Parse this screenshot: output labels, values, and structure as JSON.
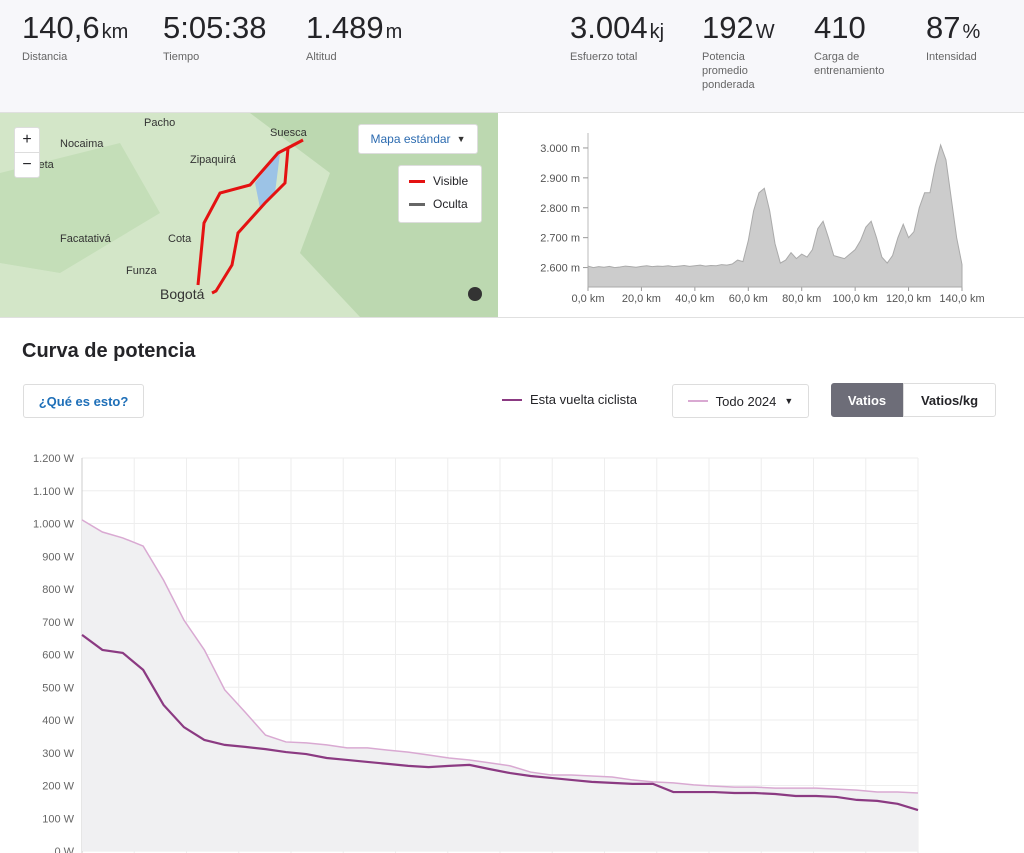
{
  "stats": [
    {
      "value": "140,6",
      "unit": "km",
      "label": "Distancia"
    },
    {
      "value": "5:05:38",
      "label": "Tiempo"
    },
    {
      "value": "1.489",
      "unit": "m",
      "label": "Altitud"
    },
    {
      "value": "3.004",
      "unit": "kj",
      "label": "Esfuerzo total"
    },
    {
      "value": "192",
      "unit": "W",
      "label": "Potencia promedio ponderada"
    },
    {
      "value": "410",
      "label": "Carga de entrenamiento"
    },
    {
      "value": "87",
      "unit": "%",
      "label": "Intensidad"
    }
  ],
  "map": {
    "places": [
      "Pacho",
      "Nocaima",
      "Villeta",
      "Zipaquirá",
      "Suesca",
      "Facatativá",
      "Cota",
      "Funza",
      "Bogotá"
    ],
    "zoom_in": "+",
    "zoom_out": "−",
    "layer_button": "Mapa estándar",
    "legend": [
      "Visible",
      "Oculta"
    ]
  },
  "section_title": "Curva de potencia",
  "help_button": "¿Qué es esto?",
  "unit_buttons": [
    "Vatios",
    "Vatios/kg"
  ],
  "chart_data": [
    {
      "type": "area",
      "x": [
        0,
        2,
        4,
        6,
        8,
        10,
        12,
        14,
        16,
        18,
        20,
        22,
        24,
        26,
        28,
        30,
        32,
        34,
        36,
        38,
        40,
        42,
        44,
        46,
        48,
        50,
        52,
        54,
        56,
        58,
        60,
        62,
        64,
        66,
        68,
        70,
        72,
        74,
        76,
        78,
        80,
        82,
        84,
        86,
        88,
        90,
        92,
        94,
        96,
        98,
        100,
        102,
        104,
        106,
        108,
        110,
        112,
        114,
        116,
        118,
        120,
        122,
        124,
        126,
        128,
        130,
        132,
        134,
        136,
        138,
        140
      ],
      "values": [
        2605,
        2600,
        2603,
        2601,
        2604,
        2600,
        2602,
        2605,
        2603,
        2601,
        2604,
        2606,
        2603,
        2605,
        2604,
        2606,
        2603,
        2605,
        2607,
        2604,
        2606,
        2608,
        2605,
        2607,
        2606,
        2610,
        2608,
        2612,
        2625,
        2620,
        2690,
        2790,
        2850,
        2865,
        2790,
        2680,
        2615,
        2625,
        2650,
        2630,
        2645,
        2635,
        2660,
        2730,
        2755,
        2700,
        2640,
        2635,
        2630,
        2645,
        2660,
        2690,
        2735,
        2755,
        2700,
        2635,
        2615,
        2640,
        2700,
        2745,
        2700,
        2720,
        2800,
        2850,
        2850,
        2940,
        3010,
        2960,
        2830,
        2700,
        2610
      ],
      "color": "#cccccc",
      "xlim": [
        0,
        140
      ],
      "xticks": [
        {
          "value": 0,
          "label": "0,0 km"
        },
        {
          "value": 20,
          "label": "20,0 km"
        },
        {
          "value": 40,
          "label": "40,0 km"
        },
        {
          "value": 60,
          "label": "60,0 km"
        },
        {
          "value": 80,
          "label": "80,0 km"
        },
        {
          "value": 100,
          "label": "100,0 km"
        },
        {
          "value": 120,
          "label": "120,0 km"
        },
        {
          "value": 140,
          "label": "140,0 km"
        }
      ],
      "ylim": [
        2535,
        3050
      ],
      "yticks": [
        {
          "value": 2600,
          "label": "2.600 m"
        },
        {
          "value": 2700,
          "label": "2.700 m"
        },
        {
          "value": 2800,
          "label": "2.800 m"
        },
        {
          "value": 2900,
          "label": "2.900 m"
        },
        {
          "value": 3000,
          "label": "3.000 m"
        }
      ]
    },
    {
      "type": "line",
      "categories": [
        null,
        null,
        null,
        null,
        null,
        null,
        null,
        null,
        null,
        null,
        null,
        null,
        null,
        null,
        null,
        null,
        null,
        null,
        null,
        null,
        null,
        null,
        null,
        null,
        null,
        null,
        null,
        null,
        null,
        null,
        null,
        null,
        null,
        null,
        null,
        null,
        null,
        null,
        null,
        null,
        null,
        null
      ],
      "series": [
        {
          "name": "Esta vuelta ciclista",
          "color": "#8b3a82",
          "values": [
            660,
            614,
            605,
            553,
            446,
            378,
            339,
            324,
            318,
            311,
            302,
            296,
            284,
            278,
            272,
            266,
            260,
            256,
            260,
            263,
            250,
            238,
            229,
            223,
            217,
            211,
            208,
            205,
            205,
            180,
            180,
            180,
            177,
            177,
            174,
            168,
            168,
            165,
            156,
            153,
            144,
            125
          ]
        },
        {
          "name": "Todo 2024",
          "color": "#d9a9d2",
          "values": [
            1011,
            974,
            956,
            931,
            827,
            705,
            614,
            492,
            424,
            354,
            333,
            330,
            324,
            315,
            315,
            308,
            302,
            293,
            284,
            278,
            269,
            260,
            241,
            232,
            232,
            229,
            226,
            217,
            211,
            208,
            202,
            198,
            195,
            195,
            192,
            192,
            192,
            189,
            186,
            180,
            180,
            177
          ]
        }
      ],
      "ylim": [
        0,
        1200
      ],
      "yticks": [
        {
          "value": 0,
          "label": "0 W"
        },
        {
          "value": 100,
          "label": "100 W"
        },
        {
          "value": 200,
          "label": "200 W"
        },
        {
          "value": 300,
          "label": "300 W"
        },
        {
          "value": 400,
          "label": "400 W"
        },
        {
          "value": 500,
          "label": "500 W"
        },
        {
          "value": 600,
          "label": "600 W"
        },
        {
          "value": 700,
          "label": "700 W"
        },
        {
          "value": 800,
          "label": "800 W"
        },
        {
          "value": 900,
          "label": "900 W"
        },
        {
          "value": 1000,
          "label": "1.000 W"
        },
        {
          "value": 1100,
          "label": "1.100 W"
        },
        {
          "value": 1200,
          "label": "1.200 W"
        }
      ],
      "grid": true
    }
  ]
}
